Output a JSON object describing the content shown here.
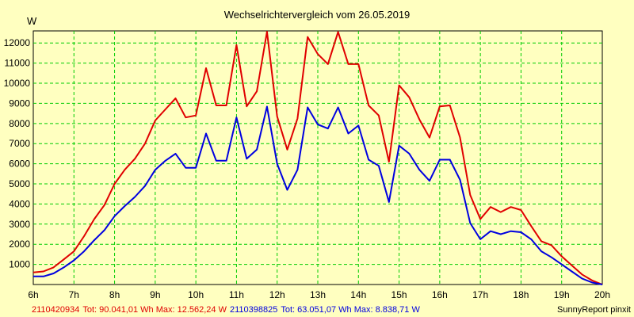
{
  "chart_data": {
    "type": "line",
    "title": "Wechselrichtervergleich vom 26.05.2019",
    "ylabel": "W",
    "xlabel": "",
    "x_ticks": [
      "6h",
      "7h",
      "8h",
      "9h",
      "10h",
      "11h",
      "12h",
      "13h",
      "14h",
      "15h",
      "16h",
      "17h",
      "18h",
      "19h",
      "20h"
    ],
    "y_ticks": [
      1000,
      2000,
      3000,
      4000,
      5000,
      6000,
      7000,
      8000,
      9000,
      10000,
      11000,
      12000
    ],
    "xlim": [
      6,
      20
    ],
    "ylim": [
      0,
      12600
    ],
    "grid": true,
    "x": [
      6.0,
      6.25,
      6.5,
      6.75,
      7.0,
      7.25,
      7.5,
      7.75,
      8.0,
      8.25,
      8.5,
      8.75,
      9.0,
      9.25,
      9.5,
      9.75,
      10.0,
      10.25,
      10.5,
      10.75,
      11.0,
      11.25,
      11.5,
      11.75,
      12.0,
      12.25,
      12.5,
      12.75,
      13.0,
      13.25,
      13.5,
      13.75,
      14.0,
      14.25,
      14.5,
      14.75,
      15.0,
      15.25,
      15.5,
      15.75,
      16.0,
      16.25,
      16.5,
      16.75,
      17.0,
      17.25,
      17.5,
      17.75,
      18.0,
      18.25,
      18.5,
      18.75,
      19.0,
      19.25,
      19.5,
      19.75,
      20.0
    ],
    "series": [
      {
        "name": "2110420934",
        "color": "#e00000",
        "values": [
          600,
          650,
          850,
          1250,
          1650,
          2400,
          3250,
          3950,
          5000,
          5700,
          6250,
          7000,
          8150,
          8700,
          9250,
          8300,
          8400,
          10750,
          8900,
          8900,
          11900,
          8850,
          9600,
          12562,
          8350,
          6700,
          8250,
          12300,
          11450,
          10950,
          12550,
          10950,
          10950,
          8900,
          8400,
          6100,
          9900,
          9300,
          8200,
          7300,
          8850,
          8900,
          7300,
          4450,
          3250,
          3850,
          3600,
          3850,
          3700,
          2900,
          2150,
          1950,
          1400,
          950,
          500,
          200,
          0
        ]
      },
      {
        "name": "2110398825",
        "color": "#0000e0",
        "values": [
          400,
          400,
          550,
          850,
          1200,
          1650,
          2200,
          2700,
          3400,
          3900,
          4350,
          4900,
          5700,
          6150,
          6500,
          5800,
          5800,
          7500,
          6150,
          6150,
          8300,
          6250,
          6700,
          8839,
          6000,
          4700,
          5700,
          8800,
          7950,
          7750,
          8800,
          7500,
          7900,
          6200,
          5900,
          4100,
          6900,
          6500,
          5700,
          5150,
          6200,
          6200,
          5200,
          3050,
          2250,
          2650,
          2500,
          2650,
          2600,
          2250,
          1650,
          1350,
          1000,
          650,
          300,
          100,
          0
        ]
      }
    ]
  },
  "footer": {
    "series1_id": "2110420934",
    "series1_text": "Tot: 90.041,01 Wh Max: 12.562,24 W",
    "series2_id": "2110398825",
    "series2_text": "Tot: 63.051,07 Wh Max: 8.838,71 W",
    "credit": "SunnyReport pinxit"
  }
}
